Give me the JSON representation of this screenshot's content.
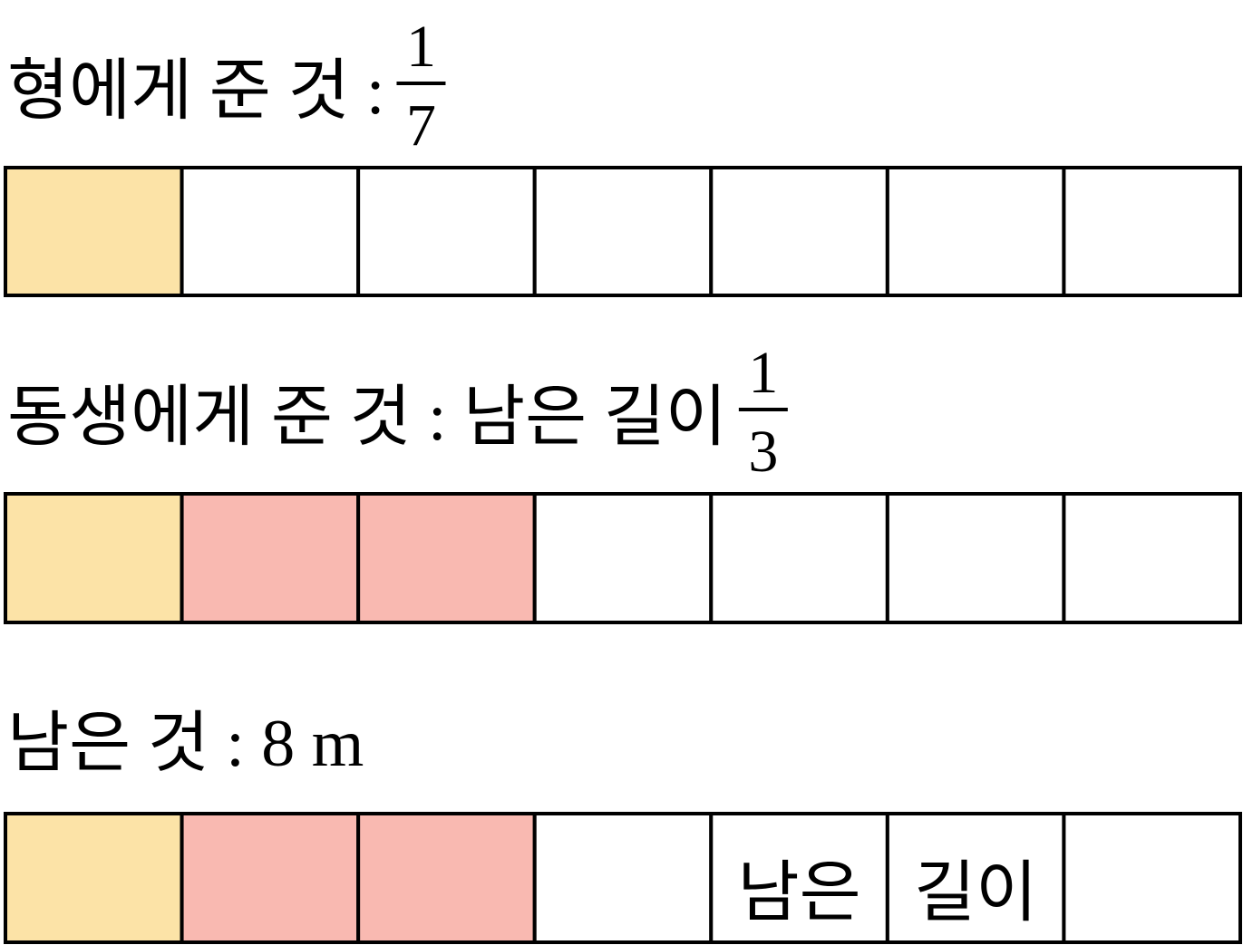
{
  "rows": [
    {
      "label": "형에게 준 것 :",
      "fraction": {
        "numerator": "1",
        "denominator": "7"
      },
      "fills": [
        "#fce3a7",
        "#ffffff",
        "#ffffff",
        "#ffffff",
        "#ffffff",
        "#ffffff",
        "#ffffff"
      ]
    },
    {
      "label": "동생에게 준 것 : 남은 길이",
      "fraction": {
        "numerator": "1",
        "denominator": "3"
      },
      "fills": [
        "#fce3a7",
        "#f9b9b1",
        "#f9b9b1",
        "#ffffff",
        "#ffffff",
        "#ffffff",
        "#ffffff"
      ]
    },
    {
      "label": "남은 것 : 8 m",
      "fills": [
        "#fce3a7",
        "#f9b9b1",
        "#f9b9b1",
        "#ffffff",
        "#ffffff",
        "#ffffff",
        "#ffffff"
      ],
      "cell_texts": [
        null,
        null,
        null,
        null,
        "남은",
        "길이",
        null
      ]
    }
  ]
}
